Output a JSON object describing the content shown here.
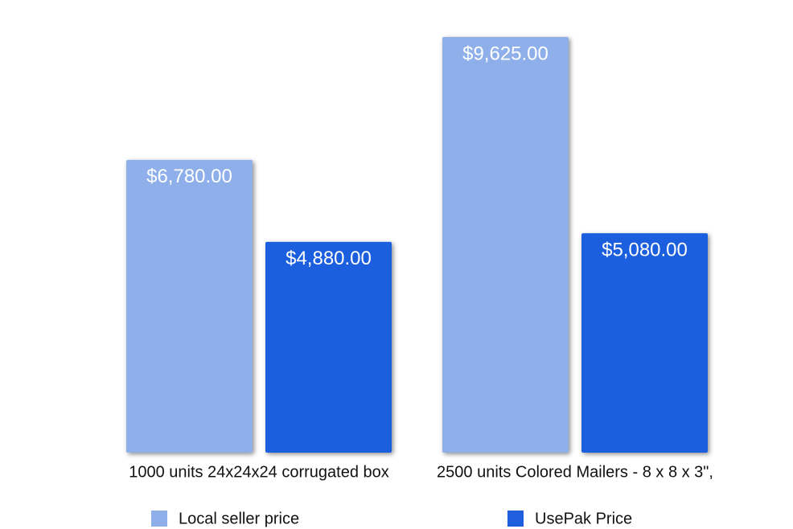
{
  "chart_data": {
    "type": "bar",
    "categories": [
      "1000 units 24x24x24 corrugated box",
      "2500 units Colored Mailers - 8 x 8 x 3\","
    ],
    "series": [
      {
        "name": "Local seller price",
        "color": "#8eafea",
        "values": [
          6780,
          9625
        ],
        "value_labels": [
          "$6,780.00",
          "$9,625.00"
        ]
      },
      {
        "name": "UsePak Price",
        "color": "#1f5fde",
        "values": [
          4880,
          5080
        ],
        "value_labels": [
          "$4,880.00",
          "$5,080.00"
        ]
      }
    ],
    "legend": "bottom"
  }
}
